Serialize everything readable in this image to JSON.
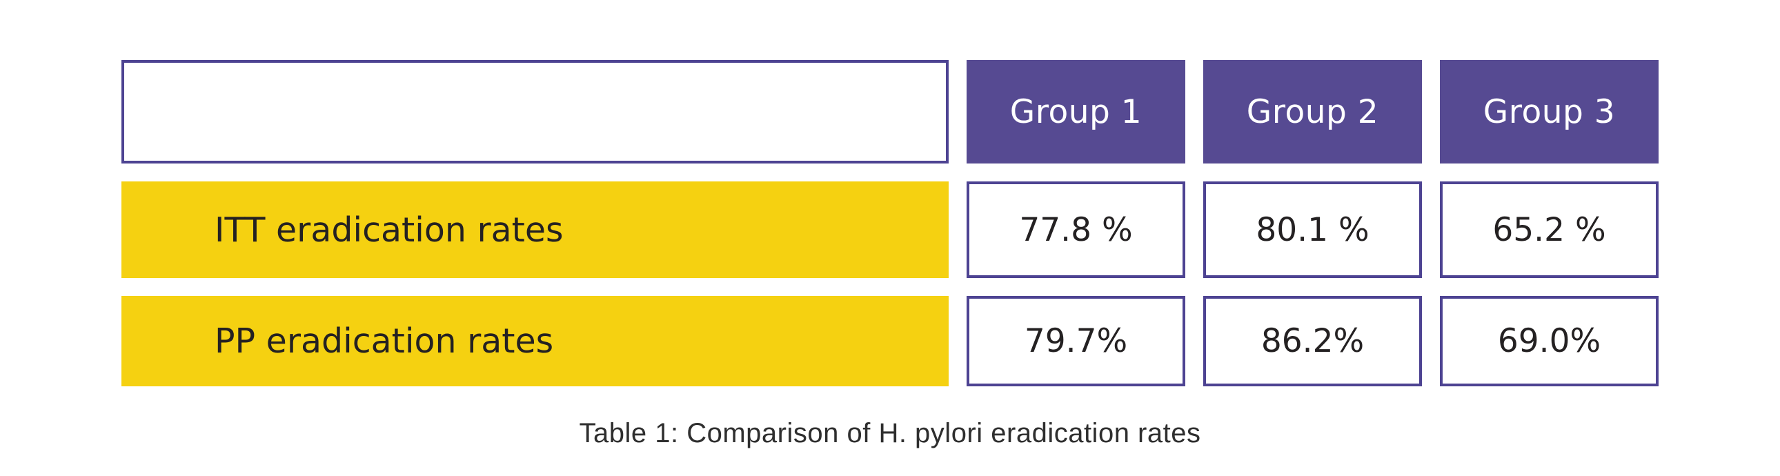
{
  "chart_data": {
    "type": "table",
    "title": "Table 1: Comparison of H. pylori eradication rates",
    "columns": [
      "Group 1",
      "Group 2",
      "Group 3"
    ],
    "rows": [
      {
        "label": "ITT eradication rates",
        "values": [
          "77.8 %",
          "80.1 %",
          "65.2 %"
        ],
        "values_numeric": [
          77.8,
          80.1,
          65.2
        ]
      },
      {
        "label": "PP eradication rates",
        "values": [
          "79.7%",
          "86.2%",
          "69.0%"
        ],
        "values_numeric": [
          79.7,
          86.2,
          69.0
        ]
      }
    ],
    "units": "%"
  },
  "colors": {
    "header_fill": "#564A92",
    "box_border": "#4D4392",
    "row_label_fill": "#F5D111",
    "header_text": "#FFFFFF",
    "body_text": "#242122",
    "caption_text": "#2E2E2E",
    "background": "#FFFFFF"
  }
}
